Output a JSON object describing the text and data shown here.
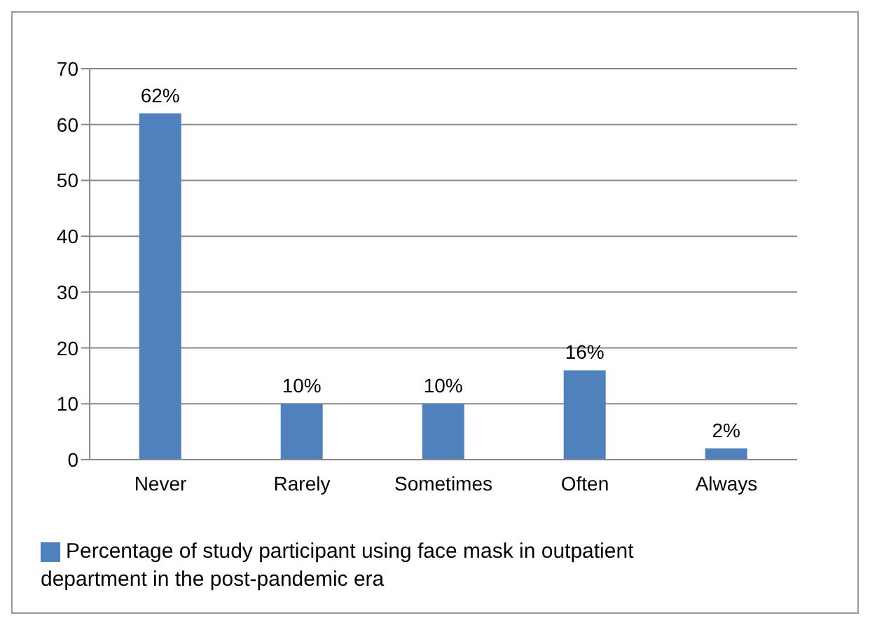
{
  "chart_data": {
    "type": "bar",
    "categories": [
      "Never",
      "Rarely",
      "Sometimes",
      "Often",
      "Always"
    ],
    "series": [
      {
        "name": "Percentage of study participant using face mask in outpatient department in the post-pandemic era",
        "color": "#4f81bd",
        "values": [
          62,
          10,
          10,
          16,
          2
        ],
        "value_labels": [
          "62%",
          "10%",
          "10%",
          "16%",
          "2%"
        ]
      }
    ],
    "ylim": [
      0,
      70
    ],
    "yticks": [
      0,
      10,
      20,
      30,
      40,
      50,
      60,
      70
    ],
    "grid": "y",
    "legend": "bottom left"
  }
}
